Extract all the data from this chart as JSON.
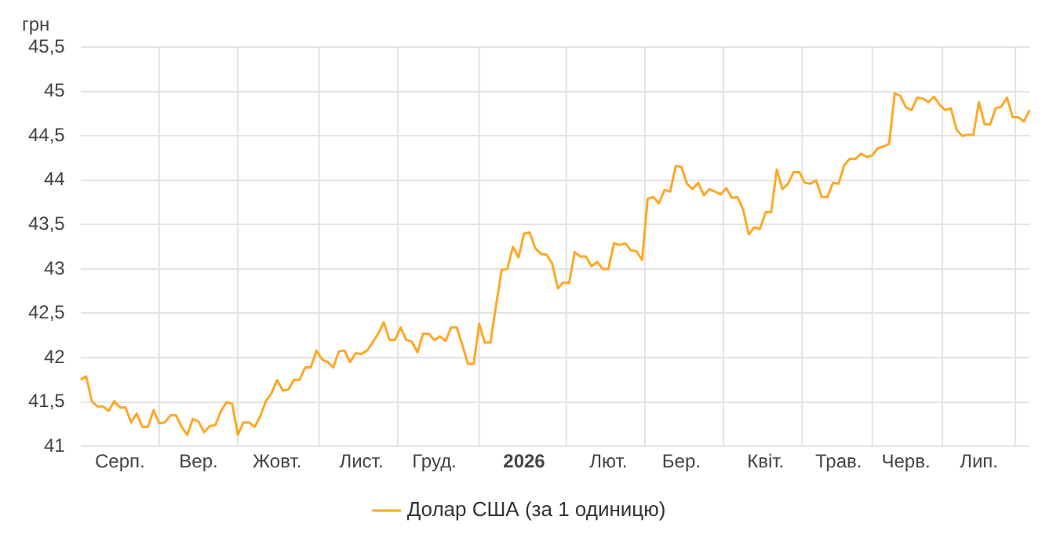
{
  "chart_data": {
    "type": "line",
    "ylabel": "грн",
    "legend": "bottom",
    "grid": true,
    "marker": "none",
    "line_style": "solid",
    "categories": [
      null,
      null,
      null,
      null,
      null,
      null,
      null,
      "Серп.",
      null,
      null,
      null,
      null,
      null,
      null,
      null,
      null,
      null,
      null,
      null,
      null,
      null,
      "Вер.",
      null,
      null,
      null,
      null,
      null,
      null,
      null,
      null,
      null,
      null,
      null,
      null,
      null,
      "Жовт.",
      null,
      null,
      null,
      null,
      null,
      null,
      null,
      null,
      null,
      null,
      null,
      null,
      null,
      null,
      "Лист.",
      null,
      null,
      null,
      null,
      null,
      null,
      null,
      null,
      null,
      null,
      null,
      null,
      "Груд.",
      null,
      null,
      null,
      null,
      null,
      null,
      null,
      null,
      null,
      null,
      null,
      null,
      null,
      null,
      null,
      "2026",
      null,
      null,
      null,
      null,
      null,
      null,
      null,
      null,
      null,
      null,
      null,
      null,
      null,
      null,
      "Лют.",
      null,
      null,
      null,
      null,
      null,
      null,
      null,
      null,
      null,
      null,
      null,
      null,
      "Бер.",
      null,
      null,
      null,
      null,
      null,
      null,
      null,
      null,
      null,
      null,
      null,
      null,
      null,
      null,
      "Квіт.",
      null,
      null,
      null,
      null,
      null,
      null,
      null,
      null,
      null,
      null,
      null,
      null,
      "Трав.",
      null,
      null,
      null,
      null,
      null,
      null,
      null,
      null,
      null,
      null,
      null,
      "Черв.",
      null,
      null,
      null,
      null,
      null,
      null,
      null,
      null,
      null,
      null,
      null,
      null,
      "Лип.",
      null,
      null,
      null,
      null,
      null,
      null,
      null,
      null,
      null
    ],
    "ylim": [
      41,
      45.5
    ],
    "yticks": [
      41,
      {
        "value": 41.5,
        "label": "41,5"
      },
      42,
      {
        "value": 42.5,
        "label": "42,5"
      },
      43,
      {
        "value": 43.5,
        "label": "43,5"
      },
      44,
      {
        "value": 44.5,
        "label": "44,5"
      },
      45,
      {
        "value": 45.5,
        "label": "45,5"
      }
    ],
    "series": [
      {
        "name": "Долар США (за 1 одиницю)",
        "color": "#ffa726",
        "values": [
          41.75,
          41.79,
          41.51,
          41.45,
          41.45,
          41.4,
          41.51,
          41.44,
          41.44,
          41.27,
          41.37,
          41.22,
          41.22,
          41.41,
          41.26,
          41.27,
          41.35,
          41.35,
          41.22,
          41.13,
          41.31,
          41.28,
          41.16,
          41.23,
          41.24,
          41.4,
          41.5,
          41.48,
          41.13,
          41.27,
          41.27,
          41.22,
          41.34,
          41.51,
          41.6,
          41.75,
          41.63,
          41.64,
          41.75,
          41.75,
          41.89,
          41.89,
          42.08,
          41.98,
          41.95,
          41.89,
          42.07,
          42.08,
          41.95,
          42.05,
          42.04,
          42.08,
          42.17,
          42.27,
          42.4,
          42.2,
          42.2,
          42.34,
          42.2,
          42.18,
          42.06,
          42.27,
          42.27,
          42.2,
          42.24,
          42.19,
          42.34,
          42.34,
          42.14,
          41.93,
          41.93,
          42.38,
          42.17,
          42.17,
          42.59,
          42.99,
          43.0,
          43.25,
          43.13,
          43.4,
          43.41,
          43.23,
          43.17,
          43.16,
          43.06,
          42.78,
          42.85,
          42.84,
          43.19,
          43.14,
          43.14,
          43.03,
          43.08,
          43.0,
          43.0,
          43.29,
          43.27,
          43.29,
          43.21,
          43.2,
          43.1,
          43.79,
          43.81,
          43.74,
          43.89,
          43.87,
          44.16,
          44.15,
          43.96,
          43.9,
          43.97,
          43.83,
          43.9,
          43.87,
          43.84,
          43.91,
          43.8,
          43.81,
          43.67,
          43.39,
          43.47,
          43.45,
          43.64,
          43.64,
          44.12,
          43.9,
          43.96,
          44.09,
          44.09,
          43.97,
          43.96,
          44.0,
          43.81,
          43.81,
          43.97,
          43.96,
          44.17,
          44.24,
          44.24,
          44.3,
          44.26,
          44.28,
          44.36,
          44.38,
          44.41,
          44.98,
          44.95,
          44.82,
          44.79,
          44.93,
          44.92,
          44.88,
          44.94,
          44.85,
          44.79,
          44.81,
          44.57,
          44.5,
          44.51,
          44.51,
          44.88,
          44.63,
          44.63,
          44.81,
          44.83,
          44.93,
          44.71,
          44.71,
          44.66,
          44.79
        ]
      }
    ]
  }
}
